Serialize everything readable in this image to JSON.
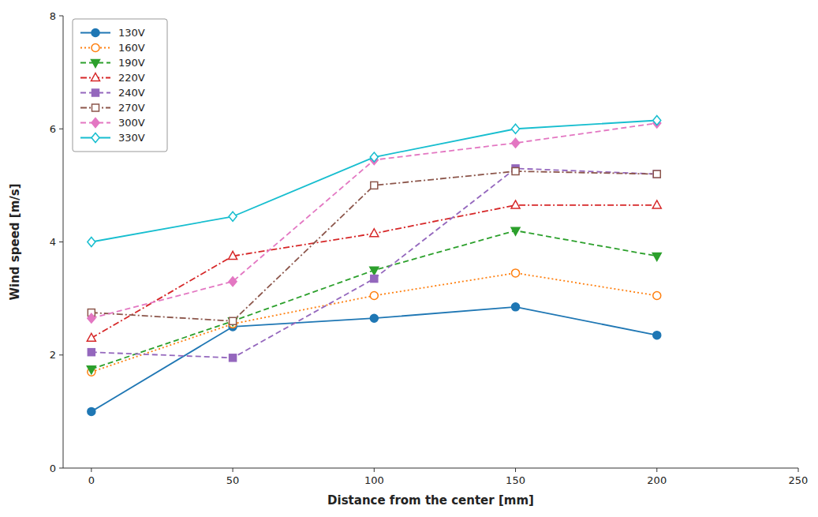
{
  "chart_data": {
    "type": "line",
    "xlabel": "Distance from the center [mm]",
    "ylabel": "Wind speed [m/s]",
    "x": [
      0,
      50,
      100,
      150,
      200
    ],
    "series": [
      {
        "name": "130V",
        "values": [
          1.0,
          2.5,
          2.65,
          2.85,
          2.35
        ],
        "line_style": "solid",
        "marker": "circle"
      },
      {
        "name": "160V",
        "values": [
          1.7,
          2.55,
          3.05,
          3.45,
          3.05
        ],
        "line_style": "dotted",
        "marker": "circle-open"
      },
      {
        "name": "190V",
        "values": [
          1.75,
          2.6,
          3.5,
          4.2,
          3.75
        ],
        "line_style": "dashed",
        "marker": "triangle-down"
      },
      {
        "name": "220V",
        "values": [
          2.3,
          3.75,
          4.15,
          4.65,
          4.65
        ],
        "line_style": "dashdot",
        "marker": "triangle-up-open"
      },
      {
        "name": "240V",
        "values": [
          2.05,
          1.95,
          3.35,
          5.3,
          5.2
        ],
        "line_style": "dashed",
        "marker": "square"
      },
      {
        "name": "270V",
        "values": [
          2.75,
          2.6,
          5.0,
          5.25,
          5.2
        ],
        "line_style": "dashdot",
        "marker": "square-open"
      },
      {
        "name": "300V",
        "values": [
          2.65,
          3.3,
          5.45,
          5.75,
          6.1
        ],
        "line_style": "dashed",
        "marker": "diamond"
      },
      {
        "name": "330V",
        "values": [
          4.0,
          4.45,
          5.5,
          6.0,
          6.15
        ],
        "line_style": "solid",
        "marker": "diamond-open"
      }
    ],
    "xlim": [
      -10,
      250
    ],
    "ylim": [
      0,
      8
    ],
    "xticks": [
      0,
      50,
      100,
      150,
      200,
      250
    ],
    "yticks": [
      0,
      2,
      4,
      6,
      8
    ],
    "legend": "upper left",
    "grid": false
  }
}
